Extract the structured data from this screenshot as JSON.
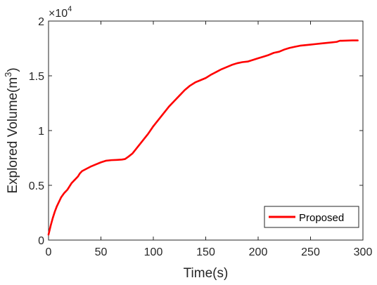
{
  "chart_data": {
    "type": "line",
    "xlabel": "Time(s)",
    "ylabel_main": "Explored Volume(m",
    "ylabel_sup": "3",
    "ylabel_close": ")",
    "y_multiplier": {
      "base": "×10",
      "exponent": "4"
    },
    "xlim": [
      0,
      300
    ],
    "ylim": [
      0,
      2
    ],
    "xticks": [
      0,
      50,
      100,
      150,
      200,
      250,
      300
    ],
    "xtick_labels": [
      "0",
      "50",
      "100",
      "150",
      "200",
      "250",
      "300"
    ],
    "yticks": [
      0,
      0.5,
      1,
      1.5,
      2
    ],
    "ytick_labels": [
      "0",
      "0.5",
      "1",
      "1.5",
      "2"
    ],
    "grid": false,
    "legend_position": "bottom-right",
    "series": [
      {
        "name": "Proposed",
        "color": "#ff0000",
        "x": [
          0,
          2,
          4,
          6,
          8,
          10,
          12,
          15,
          18,
          20,
          22,
          25,
          28,
          30,
          32,
          35,
          40,
          45,
          50,
          55,
          60,
          65,
          70,
          73,
          76,
          80,
          85,
          90,
          95,
          100,
          105,
          110,
          115,
          120,
          125,
          130,
          135,
          140,
          145,
          150,
          155,
          158,
          160,
          165,
          170,
          175,
          180,
          185,
          190,
          195,
          200,
          205,
          210,
          215,
          220,
          225,
          230,
          235,
          240,
          245,
          250,
          255,
          260,
          265,
          270,
          275,
          278,
          280,
          285,
          290,
          295
        ],
        "y": [
          0.05,
          0.13,
          0.2,
          0.26,
          0.31,
          0.35,
          0.39,
          0.43,
          0.46,
          0.49,
          0.52,
          0.55,
          0.58,
          0.61,
          0.63,
          0.645,
          0.67,
          0.69,
          0.71,
          0.725,
          0.73,
          0.732,
          0.735,
          0.74,
          0.76,
          0.79,
          0.85,
          0.91,
          0.97,
          1.04,
          1.1,
          1.16,
          1.22,
          1.27,
          1.32,
          1.37,
          1.41,
          1.44,
          1.46,
          1.48,
          1.51,
          1.525,
          1.535,
          1.56,
          1.58,
          1.6,
          1.615,
          1.625,
          1.63,
          1.645,
          1.66,
          1.675,
          1.69,
          1.71,
          1.72,
          1.74,
          1.755,
          1.765,
          1.775,
          1.78,
          1.785,
          1.79,
          1.795,
          1.8,
          1.805,
          1.81,
          1.82,
          1.82,
          1.822,
          1.823,
          1.823
        ]
      }
    ]
  }
}
